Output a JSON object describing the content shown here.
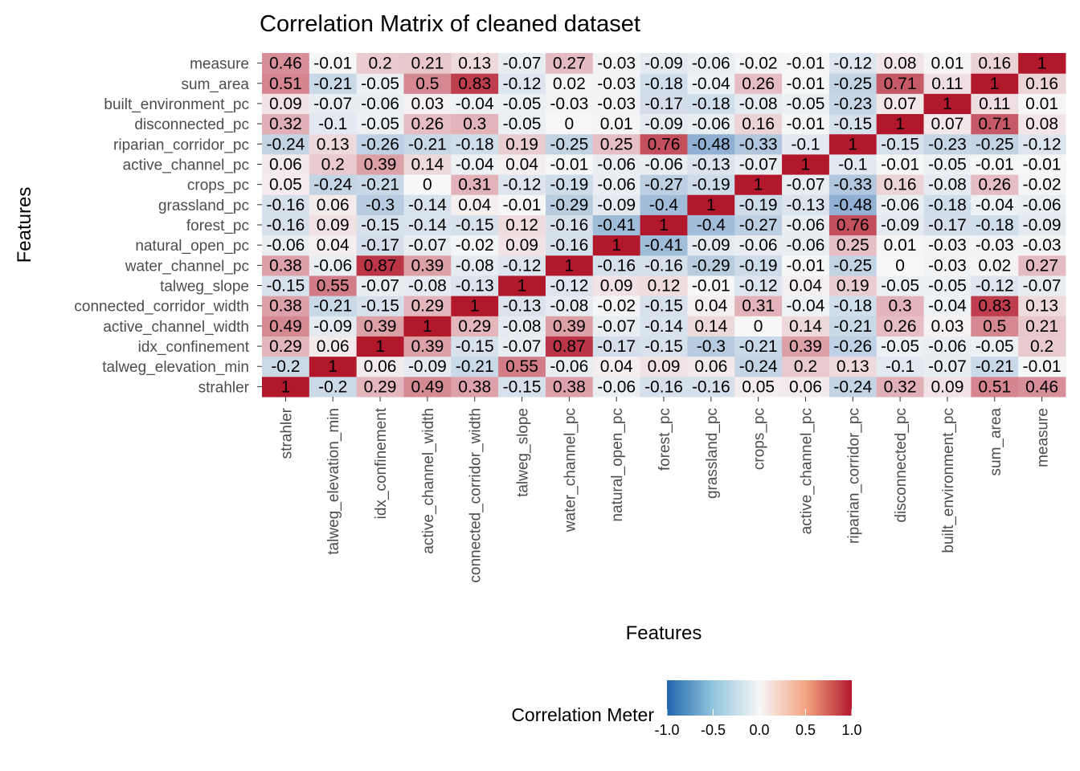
{
  "chart_data": {
    "type": "heatmap",
    "title": "Correlation Matrix of cleaned dataset",
    "xlabel": "Features",
    "ylabel": "Features",
    "features": [
      "strahler",
      "talweg_elevation_min",
      "idx_confinement",
      "active_channel_width",
      "connected_corridor_width",
      "talweg_slope",
      "water_channel_pc",
      "natural_open_pc",
      "forest_pc",
      "grassland_pc",
      "crops_pc",
      "active_channel_pc",
      "riparian_corridor_pc",
      "disconnected_pc",
      "built_environment_pc",
      "sum_area",
      "measure"
    ],
    "matrix": [
      [
        "1",
        "-0.2",
        "0.29",
        "0.49",
        "0.38",
        "-0.15",
        "0.38",
        "-0.06",
        "-0.16",
        "-0.16",
        "0.05",
        "0.06",
        "-0.24",
        "0.32",
        "0.09",
        "0.51",
        "0.46"
      ],
      [
        "-0.2",
        "1",
        "0.06",
        "-0.09",
        "-0.21",
        "0.55",
        "-0.06",
        "0.04",
        "0.09",
        "0.06",
        "-0.24",
        "0.2",
        "0.13",
        "-0.1",
        "-0.07",
        "-0.21",
        "-0.01"
      ],
      [
        "0.29",
        "0.06",
        "1",
        "0.39",
        "-0.15",
        "-0.07",
        "0.87",
        "-0.17",
        "-0.15",
        "-0.3",
        "-0.21",
        "0.39",
        "-0.26",
        "-0.05",
        "-0.06",
        "-0.05",
        "0.2"
      ],
      [
        "0.49",
        "-0.09",
        "0.39",
        "1",
        "0.29",
        "-0.08",
        "0.39",
        "-0.07",
        "-0.14",
        "0.14",
        "0",
        "0.14",
        "-0.21",
        "0.26",
        "0.03",
        "0.5",
        "0.21"
      ],
      [
        "0.38",
        "-0.21",
        "-0.15",
        "0.29",
        "1",
        "-0.13",
        "-0.08",
        "-0.02",
        "-0.15",
        "0.04",
        "0.31",
        "-0.04",
        "-0.18",
        "0.3",
        "-0.04",
        "0.83",
        "0.13"
      ],
      [
        "-0.15",
        "0.55",
        "-0.07",
        "-0.08",
        "-0.13",
        "1",
        "-0.12",
        "0.09",
        "0.12",
        "-0.01",
        "-0.12",
        "0.04",
        "0.19",
        "-0.05",
        "-0.05",
        "-0.12",
        "-0.07"
      ],
      [
        "0.38",
        "-0.06",
        "0.87",
        "0.39",
        "-0.08",
        "-0.12",
        "1",
        "-0.16",
        "-0.16",
        "-0.29",
        "-0.19",
        "-0.01",
        "-0.25",
        "0",
        "-0.03",
        "0.02",
        "0.27"
      ],
      [
        "-0.06",
        "0.04",
        "-0.17",
        "-0.07",
        "-0.02",
        "0.09",
        "-0.16",
        "1",
        "-0.41",
        "-0.09",
        "-0.06",
        "-0.06",
        "0.25",
        "0.01",
        "-0.03",
        "-0.03",
        "-0.03"
      ],
      [
        "-0.16",
        "0.09",
        "-0.15",
        "-0.14",
        "-0.15",
        "0.12",
        "-0.16",
        "-0.41",
        "1",
        "-0.4",
        "-0.27",
        "-0.06",
        "0.76",
        "-0.09",
        "-0.17",
        "-0.18",
        "-0.09"
      ],
      [
        "-0.16",
        "0.06",
        "-0.3",
        "-0.14",
        "0.04",
        "-0.01",
        "-0.29",
        "-0.09",
        "-0.4",
        "1",
        "-0.19",
        "-0.13",
        "-0.48",
        "-0.06",
        "-0.18",
        "-0.04",
        "-0.06"
      ],
      [
        "0.05",
        "-0.24",
        "-0.21",
        "0",
        "0.31",
        "-0.12",
        "-0.19",
        "-0.06",
        "-0.27",
        "-0.19",
        "1",
        "-0.07",
        "-0.33",
        "0.16",
        "-0.08",
        "0.26",
        "-0.02"
      ],
      [
        "0.06",
        "0.2",
        "0.39",
        "0.14",
        "-0.04",
        "0.04",
        "-0.01",
        "-0.06",
        "-0.06",
        "-0.13",
        "-0.07",
        "1",
        "-0.1",
        "-0.01",
        "-0.05",
        "-0.01",
        "-0.01"
      ],
      [
        "-0.24",
        "0.13",
        "-0.26",
        "-0.21",
        "-0.18",
        "0.19",
        "-0.25",
        "0.25",
        "0.76",
        "-0.48",
        "-0.33",
        "-0.1",
        "1",
        "-0.15",
        "-0.23",
        "-0.25",
        "-0.12"
      ],
      [
        "0.32",
        "-0.1",
        "-0.05",
        "0.26",
        "0.3",
        "-0.05",
        "0",
        "0.01",
        "-0.09",
        "-0.06",
        "0.16",
        "-0.01",
        "-0.15",
        "1",
        "0.07",
        "0.71",
        "0.08"
      ],
      [
        "0.09",
        "-0.07",
        "-0.06",
        "0.03",
        "-0.04",
        "-0.05",
        "-0.03",
        "-0.03",
        "-0.17",
        "-0.18",
        "-0.08",
        "-0.05",
        "-0.23",
        "0.07",
        "1",
        "0.11",
        "0.01"
      ],
      [
        "0.51",
        "-0.21",
        "-0.05",
        "0.5",
        "0.83",
        "-0.12",
        "0.02",
        "-0.03",
        "-0.18",
        "-0.04",
        "0.26",
        "-0.01",
        "-0.25",
        "0.71",
        "0.11",
        "1",
        "0.16"
      ],
      [
        "0.46",
        "-0.01",
        "0.2",
        "0.21",
        "0.13",
        "-0.07",
        "0.27",
        "-0.03",
        "-0.09",
        "-0.06",
        "-0.02",
        "-0.01",
        "-0.12",
        "0.08",
        "0.01",
        "0.16",
        "1"
      ]
    ],
    "legend": {
      "title": "Correlation Meter",
      "ticks": [
        "-1.0",
        "-0.5",
        "0.0",
        "0.5",
        "1.0"
      ],
      "range": [
        -1,
        1
      ],
      "placement": "bottom"
    },
    "colors": {
      "low": "#2166ac",
      "mid": "#f7f7f7",
      "high": "#b2182b"
    },
    "grid": false
  }
}
